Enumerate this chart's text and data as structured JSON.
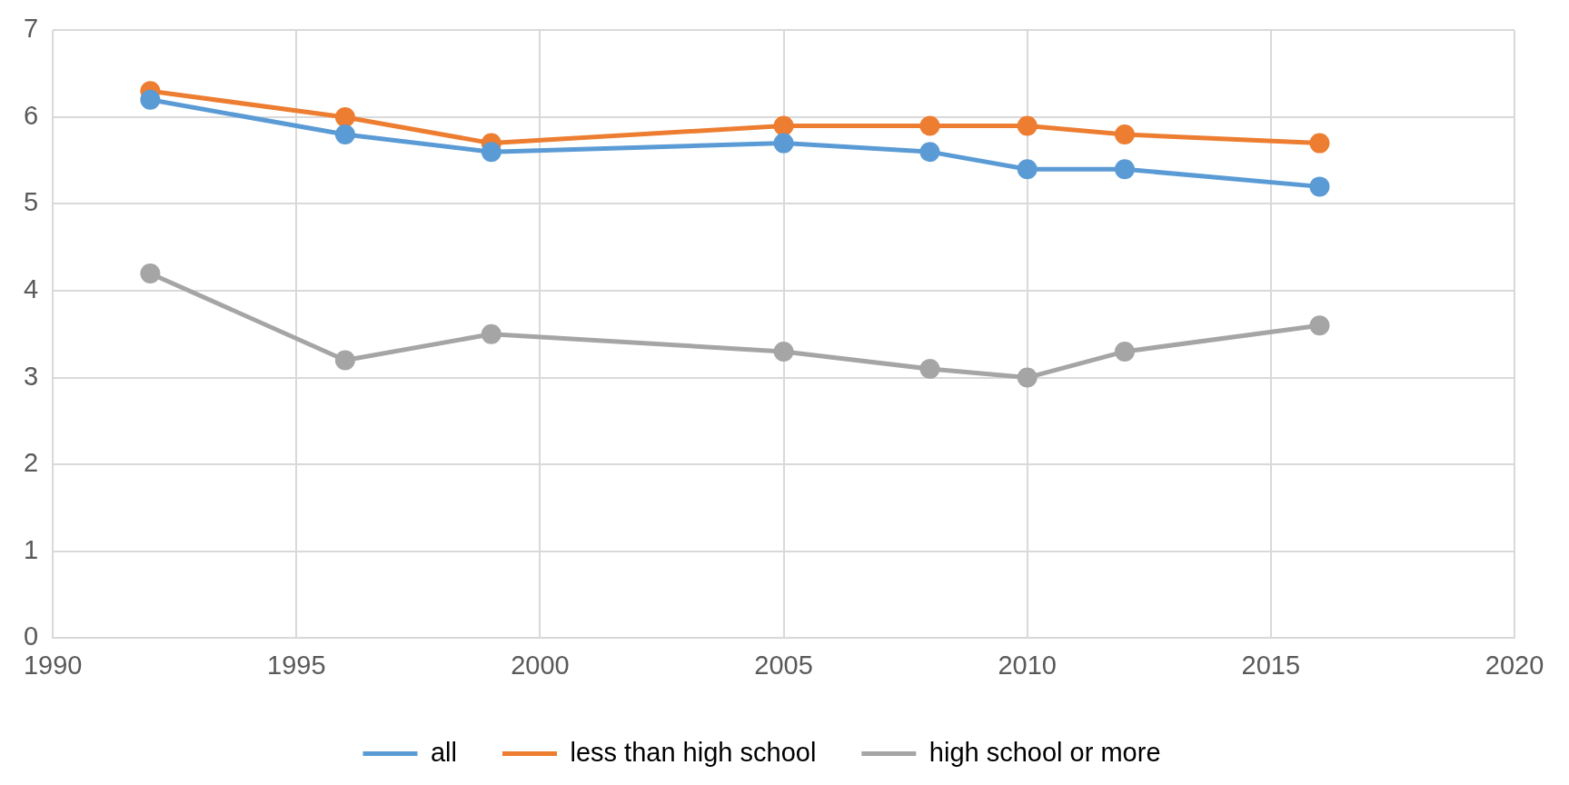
{
  "chart_data": {
    "type": "line",
    "x": [
      1992,
      1996,
      1999,
      2005,
      2008,
      2010,
      2012,
      2016
    ],
    "series": [
      {
        "name": "all",
        "color": "#5b9bd5",
        "values": [
          6.2,
          5.8,
          5.6,
          5.7,
          5.6,
          5.4,
          5.4,
          5.2
        ]
      },
      {
        "name": "less than high school",
        "color": "#ed7d31",
        "values": [
          6.3,
          6.0,
          5.7,
          5.9,
          5.9,
          5.9,
          5.8,
          5.7
        ]
      },
      {
        "name": "high school or more",
        "color": "#a5a5a5",
        "values": [
          4.2,
          3.2,
          3.5,
          3.3,
          3.1,
          3.0,
          3.3,
          3.6
        ]
      }
    ],
    "xlim": [
      1990,
      2020
    ],
    "xticks": [
      1990,
      1995,
      2000,
      2005,
      2010,
      2015,
      2020
    ],
    "ylim": [
      0,
      7
    ],
    "yticks": [
      0,
      1,
      2,
      3,
      4,
      5,
      6,
      7
    ],
    "grid": true,
    "legend": "bottom",
    "marker": "circle",
    "line_style": "solid"
  }
}
